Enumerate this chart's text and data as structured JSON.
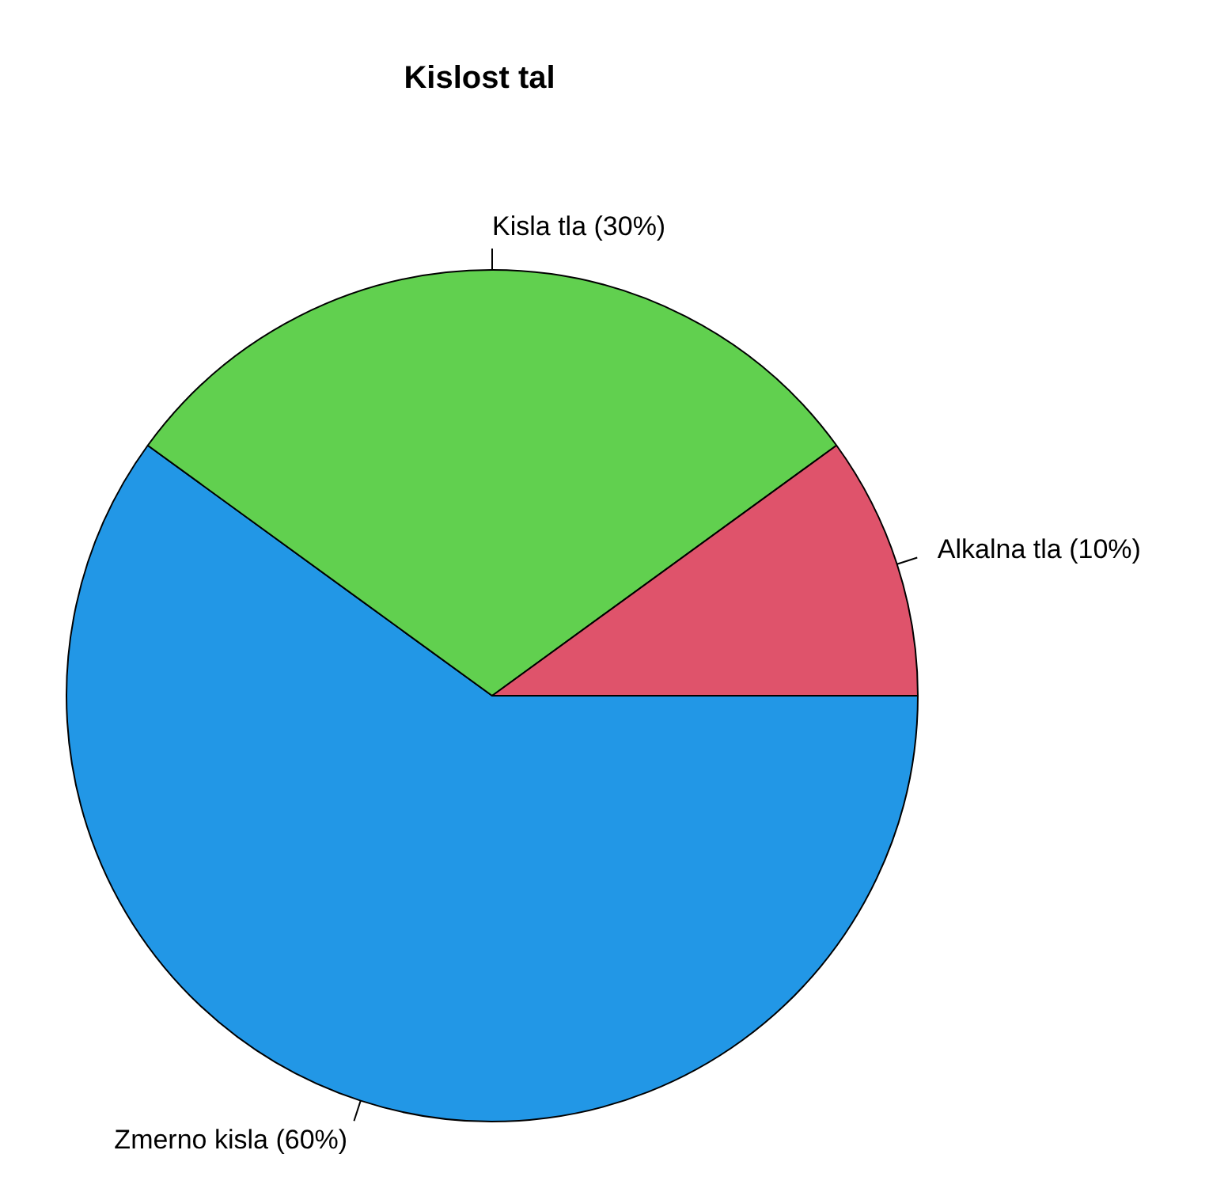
{
  "chart_data": {
    "type": "pie",
    "title": "Kislost tal",
    "categories": [
      "Alkalna tla (10%)",
      "Kisla tla (30%)",
      "Zmerno kisla (60%)"
    ],
    "values": [
      10,
      30,
      60
    ],
    "colors": [
      "#df536b",
      "#61d04f",
      "#2297e6"
    ],
    "legend": false
  }
}
